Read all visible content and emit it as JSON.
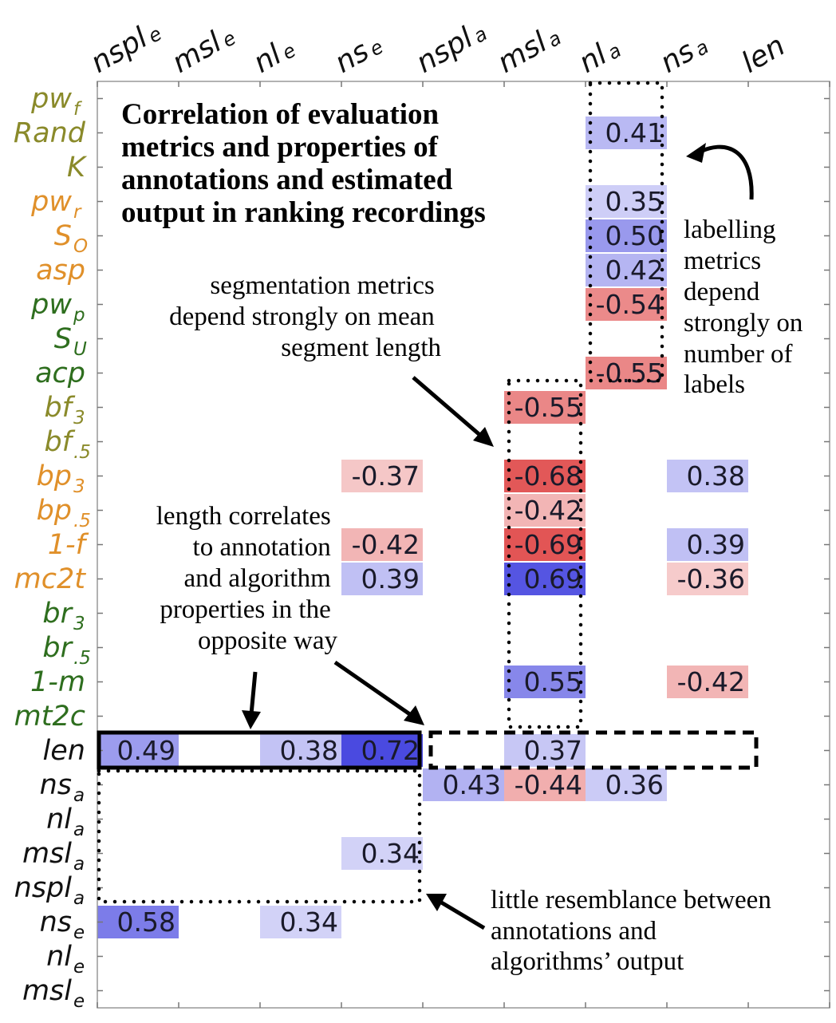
{
  "chart_data": {
    "type": "heatmap",
    "title": "Correlation of evaluation metrics and properties of annotations and estimated output in ranking recordings",
    "title_lines": [
      "Correlation of evaluation",
      "metrics and properties of",
      "annotations and estimated",
      "output in ranking recordings"
    ],
    "columns": [
      {
        "base": "nspl",
        "sub": "e"
      },
      {
        "base": "msl",
        "sub": "e"
      },
      {
        "base": "nl",
        "sub": "e"
      },
      {
        "base": "ns",
        "sub": "e"
      },
      {
        "base": "nspl",
        "sub": "a"
      },
      {
        "base": "msl",
        "sub": "a"
      },
      {
        "base": "nl",
        "sub": "a"
      },
      {
        "base": "ns",
        "sub": "a"
      },
      {
        "base": "len",
        "sub": ""
      }
    ],
    "rows": [
      {
        "base": "pw",
        "sub": "f",
        "color": "#8a8a2a"
      },
      {
        "base": "Rand",
        "sub": "",
        "color": "#8a8a2a"
      },
      {
        "base": "K",
        "sub": "",
        "color": "#8a8a2a"
      },
      {
        "base": "pw",
        "sub": "r",
        "color": "#e0902a"
      },
      {
        "base": "S",
        "sub": "O",
        "color": "#e0902a"
      },
      {
        "base": "asp",
        "sub": "",
        "color": "#e0902a"
      },
      {
        "base": "pw",
        "sub": "p",
        "color": "#2e6e1e"
      },
      {
        "base": "S",
        "sub": "U",
        "color": "#2e6e1e"
      },
      {
        "base": "acp",
        "sub": "",
        "color": "#2e6e1e"
      },
      {
        "base": "bf",
        "sub": "3",
        "color": "#8a8a2a"
      },
      {
        "base": "bf",
        "sub": ".5",
        "color": "#8a8a2a"
      },
      {
        "base": "bp",
        "sub": "3",
        "color": "#e0902a"
      },
      {
        "base": "bp",
        "sub": ".5",
        "color": "#e0902a"
      },
      {
        "base": "1-f",
        "sub": "",
        "color": "#e0902a"
      },
      {
        "base": "mc2t",
        "sub": "",
        "color": "#e0902a"
      },
      {
        "base": "br",
        "sub": "3",
        "color": "#2e6e1e"
      },
      {
        "base": "br",
        "sub": ".5",
        "color": "#2e6e1e"
      },
      {
        "base": "1-m",
        "sub": "",
        "color": "#2e6e1e"
      },
      {
        "base": "mt2c",
        "sub": "",
        "color": "#2e6e1e"
      },
      {
        "base": "len",
        "sub": "",
        "color": "#111111"
      },
      {
        "base": "ns",
        "sub": "a",
        "color": "#111111"
      },
      {
        "base": "nl",
        "sub": "a",
        "color": "#111111"
      },
      {
        "base": "msl",
        "sub": "a",
        "color": "#111111"
      },
      {
        "base": "nspl",
        "sub": "a",
        "color": "#111111"
      },
      {
        "base": "ns",
        "sub": "e",
        "color": "#111111"
      },
      {
        "base": "nl",
        "sub": "e",
        "color": "#111111"
      },
      {
        "base": "msl",
        "sub": "e",
        "color": "#111111"
      }
    ],
    "cells": [
      {
        "row": 1,
        "col": 6,
        "value": 0.41
      },
      {
        "row": 3,
        "col": 6,
        "value": 0.35
      },
      {
        "row": 4,
        "col": 6,
        "value": 0.5
      },
      {
        "row": 5,
        "col": 6,
        "value": 0.42
      },
      {
        "row": 6,
        "col": 6,
        "value": -0.54
      },
      {
        "row": 8,
        "col": 6,
        "value": -0.55
      },
      {
        "row": 9,
        "col": 5,
        "value": -0.55
      },
      {
        "row": 11,
        "col": 3,
        "value": -0.37
      },
      {
        "row": 11,
        "col": 5,
        "value": -0.68
      },
      {
        "row": 11,
        "col": 7,
        "value": 0.38
      },
      {
        "row": 12,
        "col": 5,
        "value": -0.42
      },
      {
        "row": 13,
        "col": 3,
        "value": -0.42
      },
      {
        "row": 13,
        "col": 5,
        "value": -0.69
      },
      {
        "row": 13,
        "col": 7,
        "value": 0.39
      },
      {
        "row": 14,
        "col": 3,
        "value": 0.39
      },
      {
        "row": 14,
        "col": 5,
        "value": 0.69
      },
      {
        "row": 14,
        "col": 7,
        "value": -0.36
      },
      {
        "row": 17,
        "col": 5,
        "value": 0.55
      },
      {
        "row": 17,
        "col": 7,
        "value": -0.42
      },
      {
        "row": 19,
        "col": 0,
        "value": 0.49
      },
      {
        "row": 19,
        "col": 2,
        "value": 0.38
      },
      {
        "row": 19,
        "col": 3,
        "value": 0.72
      },
      {
        "row": 19,
        "col": 5,
        "value": 0.37
      },
      {
        "row": 20,
        "col": 4,
        "value": 0.43
      },
      {
        "row": 20,
        "col": 5,
        "value": -0.44
      },
      {
        "row": 20,
        "col": 6,
        "value": 0.36
      },
      {
        "row": 22,
        "col": 3,
        "value": 0.34
      },
      {
        "row": 24,
        "col": 0,
        "value": 0.58
      },
      {
        "row": 24,
        "col": 2,
        "value": 0.34
      }
    ],
    "colors": {
      "positive": "#4a4ae0",
      "negative": "#e04a4a"
    },
    "annotations": [
      {
        "id": "labelling",
        "lines": [
          "labelling",
          "metrics",
          "depend",
          "strongly on",
          "number of",
          "labels"
        ]
      },
      {
        "id": "segmentation",
        "lines": [
          "segmentation metrics",
          "depend strongly on mean",
          "segment length"
        ]
      },
      {
        "id": "length",
        "lines": [
          "length correlates",
          "to annotation",
          "and algorithm",
          "properties in the",
          "opposite way"
        ]
      },
      {
        "id": "resemblance",
        "lines": [
          "little resemblance between",
          "annotations and",
          "algorithms’ output"
        ]
      }
    ]
  }
}
